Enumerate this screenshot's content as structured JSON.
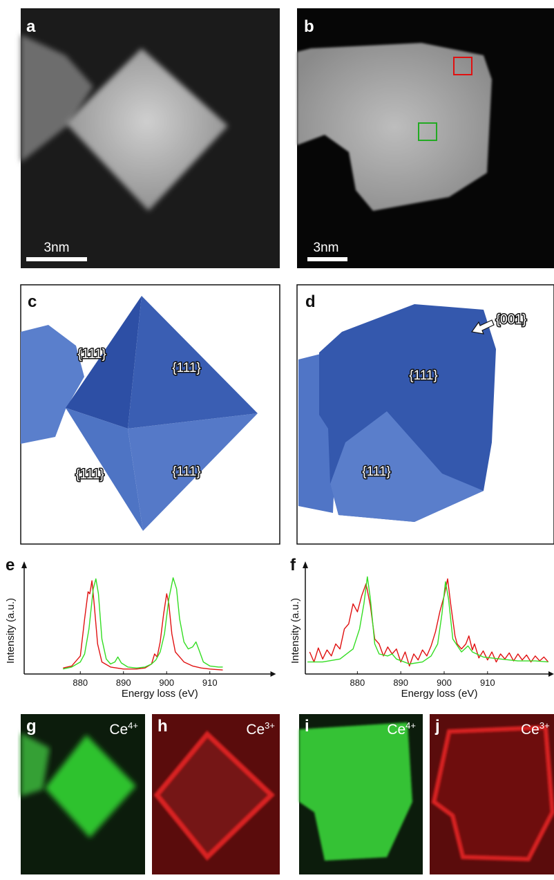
{
  "panels": {
    "a": {
      "label": "a",
      "scale_bar": "3nm"
    },
    "b": {
      "label": "b",
      "scale_bar": "3nm"
    },
    "c": {
      "label": "c",
      "facets": [
        "{111}",
        "{111}",
        "{111}",
        "{111}"
      ]
    },
    "d": {
      "label": "d",
      "facets": [
        "{111}",
        "{111}"
      ],
      "annotation": "{001}"
    },
    "g": {
      "label": "g",
      "element": "Ce",
      "charge": "4+"
    },
    "h": {
      "label": "h",
      "element": "Ce",
      "charge": "3+"
    },
    "i": {
      "label": "i",
      "element": "Ce",
      "charge": "4+"
    },
    "j": {
      "label": "j",
      "element": "Ce",
      "charge": "3+"
    }
  },
  "chart_data": [
    {
      "type": "line",
      "label": "e",
      "x_label": "Energy loss (eV)",
      "y_label": "Intensity (a.u.)",
      "xlim": [
        867,
        925
      ],
      "xticks": [
        880,
        890,
        900,
        910
      ],
      "ylim": [
        0,
        1
      ],
      "series": [
        {
          "color": "#e01010",
          "x": [
            876,
            878,
            880,
            881,
            881.8,
            882.2,
            882.7,
            883.2,
            884,
            885,
            887,
            890,
            893,
            895,
            896.5,
            897.2,
            897.8,
            898.5,
            899.3,
            900,
            900.5,
            901.2,
            902,
            904,
            906,
            908,
            910,
            913
          ],
          "values": [
            0.06,
            0.08,
            0.18,
            0.55,
            0.82,
            0.8,
            0.93,
            0.7,
            0.3,
            0.12,
            0.07,
            0.05,
            0.05,
            0.06,
            0.1,
            0.2,
            0.17,
            0.32,
            0.6,
            0.8,
            0.7,
            0.4,
            0.22,
            0.12,
            0.08,
            0.06,
            0.05,
            0.04
          ]
        },
        {
          "color": "#33dd22",
          "x": [
            876,
            878,
            880,
            881,
            882,
            883,
            883.6,
            884.2,
            885,
            886,
            887,
            888,
            888.7,
            889.5,
            891,
            893,
            895,
            896.5,
            897.5,
            898.5,
            899.5,
            900.5,
            901.5,
            902.3,
            903,
            904,
            905,
            906,
            906.8,
            907.5,
            908.5,
            910,
            912,
            913
          ],
          "values": [
            0.05,
            0.07,
            0.12,
            0.2,
            0.45,
            0.85,
            0.95,
            0.8,
            0.35,
            0.15,
            0.1,
            0.12,
            0.17,
            0.11,
            0.07,
            0.06,
            0.07,
            0.1,
            0.14,
            0.22,
            0.4,
            0.75,
            0.96,
            0.85,
            0.55,
            0.32,
            0.25,
            0.27,
            0.32,
            0.24,
            0.12,
            0.08,
            0.07,
            0.07
          ]
        }
      ]
    },
    {
      "type": "line",
      "label": "f",
      "x_label": "Energy loss (eV)",
      "y_label": "Intensity (a.u.)",
      "xlim": [
        868,
        925
      ],
      "xticks": [
        880,
        890,
        900,
        910
      ],
      "ylim": [
        0,
        1
      ],
      "series": [
        {
          "color": "#e01010",
          "x": [
            869,
            870,
            871,
            872,
            873,
            874,
            875,
            876,
            877,
            878,
            879,
            880,
            881,
            882,
            883,
            884,
            885,
            886,
            887,
            888,
            889,
            890,
            891,
            892,
            893,
            894,
            895,
            896,
            897,
            898,
            899,
            900,
            900.8,
            901.5,
            902.5,
            903,
            904,
            905,
            905.7,
            906.5,
            907,
            908,
            909,
            910,
            911,
            912,
            913,
            914,
            915,
            916,
            917,
            918,
            919,
            920,
            921,
            922,
            923,
            924
          ],
          "values": [
            0.22,
            0.12,
            0.26,
            0.15,
            0.24,
            0.18,
            0.3,
            0.25,
            0.45,
            0.5,
            0.7,
            0.62,
            0.78,
            0.9,
            0.68,
            0.35,
            0.3,
            0.18,
            0.27,
            0.2,
            0.25,
            0.12,
            0.22,
            0.08,
            0.2,
            0.14,
            0.24,
            0.18,
            0.28,
            0.42,
            0.62,
            0.78,
            0.95,
            0.7,
            0.38,
            0.3,
            0.25,
            0.3,
            0.38,
            0.24,
            0.3,
            0.16,
            0.23,
            0.14,
            0.22,
            0.12,
            0.2,
            0.15,
            0.21,
            0.13,
            0.2,
            0.14,
            0.19,
            0.12,
            0.18,
            0.13,
            0.17,
            0.12
          ]
        },
        {
          "color": "#33dd22",
          "x": [
            868.5,
            872,
            876,
            879,
            880.5,
            881.5,
            882.3,
            883,
            884,
            885,
            887,
            888,
            889,
            892,
            895,
            897,
            898.5,
            899.5,
            900.3,
            901,
            902,
            904,
            905.5,
            906.5,
            909,
            913,
            917,
            921,
            924
          ],
          "values": [
            0.12,
            0.12,
            0.15,
            0.25,
            0.45,
            0.7,
            0.97,
            0.75,
            0.3,
            0.2,
            0.18,
            0.2,
            0.15,
            0.1,
            0.12,
            0.18,
            0.3,
            0.6,
            0.92,
            0.75,
            0.35,
            0.22,
            0.28,
            0.22,
            0.17,
            0.15,
            0.13,
            0.13,
            0.12
          ]
        }
      ]
    }
  ]
}
